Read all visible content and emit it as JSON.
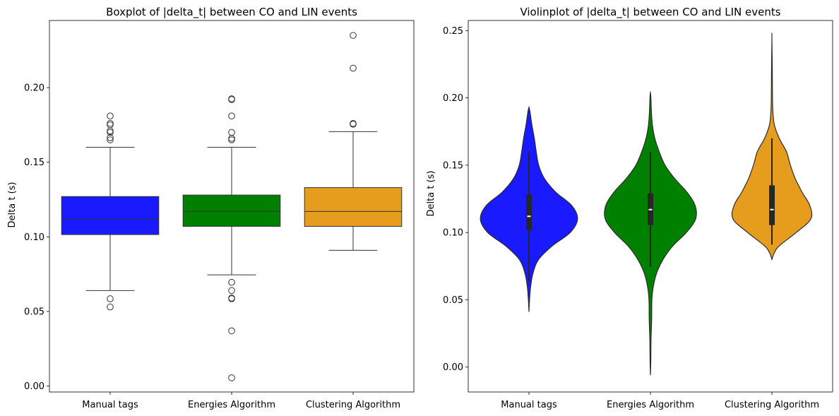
{
  "chart_data": [
    {
      "type": "box",
      "title": "Boxplot of |delta_t| between CO and LIN events",
      "xlabel": "",
      "ylabel": "Delta t (s)",
      "ylim": [
        -0.004,
        0.245
      ],
      "yticks": [
        0.0,
        0.05,
        0.1,
        0.15,
        0.2
      ],
      "ytick_labels": [
        "0.00",
        "0.05",
        "0.10",
        "0.15",
        "0.20"
      ],
      "grid": false,
      "categories": [
        "Manual tags",
        "Energies Algorithm",
        "Clustering Algorithm"
      ],
      "series": [
        {
          "category": "Manual tags",
          "color": "#1a1aff",
          "whisker_low": 0.064,
          "q1": 0.1015,
          "median": 0.112,
          "q3": 0.127,
          "whisker_high": 0.16,
          "outliers": [
            0.053,
            0.0585,
            0.165,
            0.1665,
            0.17,
            0.171,
            0.175,
            0.176,
            0.181
          ]
        },
        {
          "category": "Energies Algorithm",
          "color": "#008000",
          "whisker_low": 0.0745,
          "q1": 0.107,
          "median": 0.117,
          "q3": 0.128,
          "whisker_high": 0.16,
          "outliers": [
            0.0055,
            0.037,
            0.0585,
            0.059,
            0.064,
            0.0695,
            0.165,
            0.166,
            0.17,
            0.181,
            0.192,
            0.1925
          ]
        },
        {
          "category": "Clustering Algorithm",
          "color": "#e69c1c",
          "whisker_low": 0.091,
          "q1": 0.107,
          "median": 0.117,
          "q3": 0.133,
          "whisker_high": 0.1705,
          "outliers": [
            0.1755,
            0.176,
            0.213,
            0.235
          ]
        }
      ]
    },
    {
      "type": "violin",
      "title": "Violinplot of |delta_t| between CO and LIN events",
      "xlabel": "",
      "ylabel": "Delta t (s)",
      "ylim": [
        -0.0185,
        0.2575
      ],
      "yticks": [
        0.0,
        0.05,
        0.1,
        0.15,
        0.2,
        0.25
      ],
      "ytick_labels": [
        "0.00",
        "0.05",
        "0.10",
        "0.15",
        "0.20",
        "0.25"
      ],
      "grid": false,
      "categories": [
        "Manual tags",
        "Energies Algorithm",
        "Clustering Algorithm"
      ],
      "series": [
        {
          "category": "Manual tags",
          "color": "#1a1aff",
          "q1": 0.1015,
          "median": 0.112,
          "q3": 0.128,
          "whisker_low": 0.064,
          "whisker_high": 0.16,
          "density_profile": [
            [
              0.041,
              0.0
            ],
            [
              0.05,
              0.012
            ],
            [
              0.06,
              0.035
            ],
            [
              0.07,
              0.085
            ],
            [
              0.08,
              0.2
            ],
            [
              0.09,
              0.48
            ],
            [
              0.1,
              0.85
            ],
            [
              0.11,
              1.0
            ],
            [
              0.12,
              0.88
            ],
            [
              0.13,
              0.55
            ],
            [
              0.14,
              0.32
            ],
            [
              0.15,
              0.2
            ],
            [
              0.16,
              0.15
            ],
            [
              0.17,
              0.11
            ],
            [
              0.18,
              0.06
            ],
            [
              0.19,
              0.02
            ],
            [
              0.193,
              0.0
            ]
          ]
        },
        {
          "category": "Energies Algorithm",
          "color": "#008000",
          "q1": 0.1055,
          "median": 0.117,
          "q3": 0.129,
          "whisker_low": 0.0745,
          "whisker_high": 0.16,
          "density_profile": [
            [
              -0.006,
              0.0
            ],
            [
              0.005,
              0.008
            ],
            [
              0.02,
              0.012
            ],
            [
              0.035,
              0.025
            ],
            [
              0.05,
              0.03
            ],
            [
              0.06,
              0.06
            ],
            [
              0.07,
              0.13
            ],
            [
              0.08,
              0.26
            ],
            [
              0.09,
              0.46
            ],
            [
              0.1,
              0.74
            ],
            [
              0.11,
              0.93
            ],
            [
              0.12,
              0.92
            ],
            [
              0.13,
              0.75
            ],
            [
              0.14,
              0.5
            ],
            [
              0.15,
              0.3
            ],
            [
              0.16,
              0.18
            ],
            [
              0.17,
              0.09
            ],
            [
              0.18,
              0.04
            ],
            [
              0.19,
              0.02
            ],
            [
              0.2,
              0.01
            ],
            [
              0.204,
              0.0
            ]
          ]
        },
        {
          "category": "Clustering Algorithm",
          "color": "#e69c1c",
          "q1": 0.1055,
          "median": 0.117,
          "q3": 0.135,
          "whisker_low": 0.091,
          "whisker_high": 0.17,
          "density_profile": [
            [
              0.08,
              0.0
            ],
            [
              0.085,
              0.05
            ],
            [
              0.09,
              0.15
            ],
            [
              0.1,
              0.5
            ],
            [
              0.11,
              0.8
            ],
            [
              0.12,
              0.78
            ],
            [
              0.13,
              0.62
            ],
            [
              0.14,
              0.48
            ],
            [
              0.15,
              0.38
            ],
            [
              0.16,
              0.3
            ],
            [
              0.17,
              0.15
            ],
            [
              0.18,
              0.05
            ],
            [
              0.19,
              0.02
            ],
            [
              0.2,
              0.012
            ],
            [
              0.22,
              0.008
            ],
            [
              0.245,
              0.0
            ]
          ]
        }
      ]
    }
  ]
}
